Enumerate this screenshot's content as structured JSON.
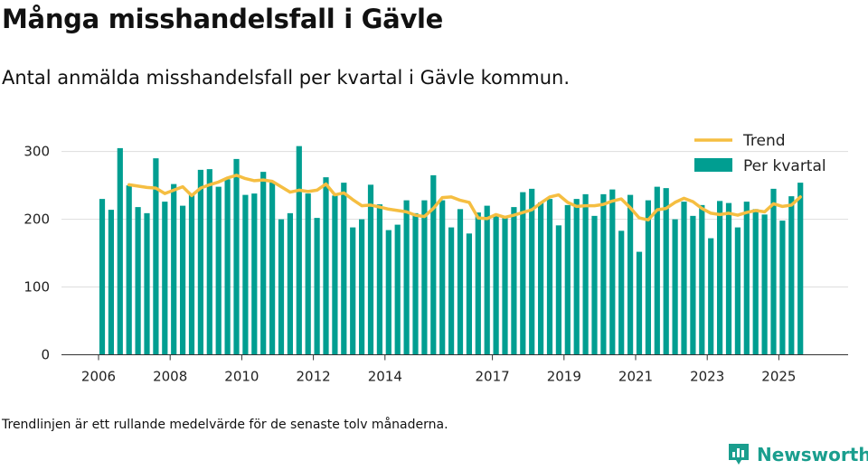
{
  "title": "Många misshandelsfall i Gävle",
  "subtitle": "Antal anmälda misshandelsfall per kvartal i Gävle kommun.",
  "footnote": "Trendlinjen är ett rullande medelvärde för de senaste tolv månaderna.",
  "brand": {
    "name": "Newsworthy",
    "icon": "newsworthy-logo-icon"
  },
  "colors": {
    "bars": "#009e91",
    "trend": "#f5be41",
    "grid": "#dddddd",
    "axis": "#333333"
  },
  "chart_data": {
    "type": "bar",
    "title": "Många misshandelsfall i Gävle",
    "ylabel": "",
    "xlabel": "",
    "ylim": [
      0,
      320
    ],
    "yticks": [
      0,
      100,
      200,
      300
    ],
    "grid": true,
    "legend": {
      "position": "top-right"
    },
    "x_start_year": 2006,
    "x_tick_labels": [
      {
        "label": "2006",
        "index": 0
      },
      {
        "label": "2008",
        "index": 8
      },
      {
        "label": "2010",
        "index": 16
      },
      {
        "label": "2012",
        "index": 24
      },
      {
        "label": "2014",
        "index": 32
      },
      {
        "label": "2017",
        "index": 44
      },
      {
        "label": "2019",
        "index": 52
      },
      {
        "label": "2021",
        "index": 60
      },
      {
        "label": "2023",
        "index": 68
      },
      {
        "label": "2025",
        "index": 76
      }
    ],
    "series": [
      {
        "name": "Per kvartal",
        "kind": "bar",
        "values": [
          230,
          214,
          305,
          250,
          218,
          209,
          290,
          226,
          252,
          220,
          237,
          273,
          274,
          248,
          259,
          289,
          236,
          238,
          270,
          255,
          200,
          209,
          308,
          238,
          202,
          262,
          235,
          254,
          188,
          200,
          251,
          222,
          184,
          192,
          228,
          209,
          228,
          265,
          228,
          188,
          215,
          179,
          210,
          220,
          205,
          202,
          218,
          240,
          245,
          225,
          230,
          191,
          221,
          230,
          237,
          205,
          237,
          244,
          183,
          236,
          152,
          228,
          248,
          246,
          200,
          226,
          205,
          221,
          172,
          227,
          224,
          188,
          226,
          215,
          207,
          245,
          198,
          234,
          254
        ]
      },
      {
        "name": "Trend",
        "kind": "line",
        "values": [
          null,
          null,
          null,
          251,
          249,
          247,
          246,
          238,
          243,
          248,
          235,
          246,
          251,
          255,
          261,
          265,
          260,
          257,
          258,
          256,
          248,
          240,
          243,
          241,
          243,
          252,
          236,
          239,
          229,
          220,
          221,
          218,
          215,
          213,
          211,
          206,
          204,
          216,
          232,
          233,
          228,
          225,
          202,
          201,
          207,
          203,
          206,
          210,
          214,
          224,
          233,
          236,
          225,
          219,
          220,
          220,
          222,
          227,
          230,
          217,
          202,
          199,
          214,
          216,
          225,
          231,
          226,
          216,
          209,
          207,
          209,
          206,
          210,
          213,
          211,
          223,
          219,
          221,
          233
        ]
      }
    ]
  }
}
